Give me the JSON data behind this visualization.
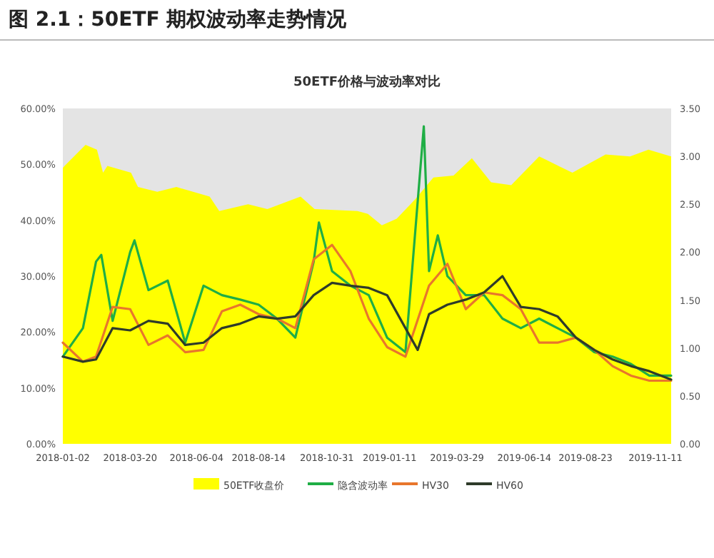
{
  "chart_data": {
    "type": "line",
    "title": "图 2.1：50ETF 期权波动率走势情况",
    "subtitle": "50ETF价格与波动率对比",
    "legend": "bottom",
    "line_style": "solid",
    "xlim": [
      "2018-01-02",
      "2019-11-29"
    ],
    "xticks": [
      "2018-01-02",
      "2018-03-20",
      "2018-06-04",
      "2018-08-14",
      "2018-10-31",
      "2019-01-11",
      "2019-03-29",
      "2019-06-14",
      "2019-08-23",
      "2019-11-11"
    ],
    "ylim": [
      0,
      60
    ],
    "yticks": [
      {
        "value": 0,
        "label": "0.00%"
      },
      {
        "value": 10,
        "label": "10.00%"
      },
      {
        "value": 20,
        "label": "20.00%"
      },
      {
        "value": 30,
        "label": "30.00%"
      },
      {
        "value": 40,
        "label": "40.00%"
      },
      {
        "value": 50,
        "label": "50.00%"
      },
      {
        "value": 60,
        "label": "60.00%"
      }
    ],
    "y2lim": [
      0,
      3.5
    ],
    "y2ticks": [
      {
        "value": 0,
        "label": "0.00"
      },
      {
        "value": 0.5,
        "label": "0.50"
      },
      {
        "value": 1,
        "label": "1.00"
      },
      {
        "value": 1.5,
        "label": "1.50"
      },
      {
        "value": 2,
        "label": "2.00"
      },
      {
        "value": 2.5,
        "label": "2.50"
      },
      {
        "value": 3,
        "label": "3.00"
      },
      {
        "value": 3.5,
        "label": "3.50"
      }
    ],
    "series": [
      {
        "name": "50ETF收盘价",
        "type": "area",
        "axis": "y2",
        "color": "#ffff00",
        "x": [
          "2018-01-02",
          "2018-01-04",
          "2018-01-28",
          "2018-02-10",
          "2018-02-17",
          "2018-02-22",
          "2018-03-21",
          "2018-03-29",
          "2018-04-20",
          "2018-05-12",
          "2018-06-19",
          "2018-06-30",
          "2018-08-02",
          "2018-08-24",
          "2018-10-01",
          "2018-10-17",
          "2018-12-05",
          "2018-12-17",
          "2019-01-02",
          "2019-01-19",
          "2019-02-09",
          "2019-03-02",
          "2019-03-25",
          "2019-04-15",
          "2019-05-07",
          "2019-05-30",
          "2019-07-01",
          "2019-07-23",
          "2019-08-08",
          "2019-09-15",
          "2019-10-13",
          "2019-11-03",
          "2019-11-29"
        ],
        "values": [
          2.88,
          2.9,
          3.12,
          3.07,
          2.83,
          2.9,
          2.83,
          2.68,
          2.63,
          2.68,
          2.58,
          2.43,
          2.5,
          2.45,
          2.58,
          2.45,
          2.43,
          2.4,
          2.28,
          2.35,
          2.55,
          2.78,
          2.8,
          2.98,
          2.73,
          2.7,
          3.0,
          2.9,
          2.83,
          3.02,
          3.0,
          3.07,
          3.0
        ]
      },
      {
        "name": "隐含波动率",
        "color": "#1fae45",
        "x": [
          "2018-01-02",
          "2018-01-25",
          "2018-02-09",
          "2018-02-15",
          "2018-02-28",
          "2018-03-20",
          "2018-03-25",
          "2018-04-10",
          "2018-05-02",
          "2018-05-22",
          "2018-06-12",
          "2018-07-03",
          "2018-07-24",
          "2018-08-14",
          "2018-09-04",
          "2018-09-25",
          "2018-10-16",
          "2018-10-22",
          "2018-11-06",
          "2018-11-27",
          "2018-12-18",
          "2019-01-08",
          "2019-01-29",
          "2019-02-19",
          "2019-02-25",
          "2019-03-07",
          "2019-03-18",
          "2019-04-08",
          "2019-04-29",
          "2019-05-20",
          "2019-06-10",
          "2019-07-01",
          "2019-07-22",
          "2019-08-12",
          "2019-09-02",
          "2019-09-23",
          "2019-10-14",
          "2019-11-04",
          "2019-11-29"
        ],
        "values": [
          15.6,
          20.7,
          32.6,
          33.8,
          22.0,
          34.3,
          36.4,
          27.5,
          29.2,
          18.1,
          28.3,
          26.6,
          25.8,
          24.9,
          22.4,
          19.0,
          32.6,
          39.6,
          30.9,
          28.3,
          26.6,
          19.0,
          16.4,
          56.8,
          30.9,
          37.3,
          30.0,
          26.6,
          26.6,
          22.4,
          20.7,
          22.4,
          20.7,
          19.0,
          16.4,
          15.6,
          14.3,
          12.2,
          12.2
        ]
      },
      {
        "name": "HV30",
        "color": "#e8762c",
        "x": [
          "2018-01-02",
          "2018-01-25",
          "2018-02-09",
          "2018-02-28",
          "2018-03-20",
          "2018-04-10",
          "2018-05-02",
          "2018-05-22",
          "2018-06-12",
          "2018-07-03",
          "2018-07-24",
          "2018-08-14",
          "2018-09-04",
          "2018-09-25",
          "2018-10-16",
          "2018-11-06",
          "2018-11-27",
          "2018-12-18",
          "2019-01-08",
          "2019-01-29",
          "2019-02-25",
          "2019-03-18",
          "2019-04-08",
          "2019-04-29",
          "2019-05-20",
          "2019-06-10",
          "2019-07-01",
          "2019-07-22",
          "2019-08-12",
          "2019-09-02",
          "2019-09-23",
          "2019-10-14",
          "2019-11-04",
          "2019-11-29"
        ],
        "values": [
          18.1,
          14.7,
          15.6,
          24.5,
          24.1,
          17.7,
          19.4,
          16.4,
          16.8,
          23.7,
          24.9,
          23.2,
          22.4,
          20.7,
          33.0,
          35.6,
          30.9,
          22.4,
          17.3,
          15.6,
          28.3,
          32.2,
          24.1,
          27.1,
          26.6,
          24.1,
          18.1,
          18.1,
          19.0,
          16.8,
          13.9,
          12.2,
          11.3,
          11.3
        ]
      },
      {
        "name": "HV60",
        "color": "#2e3b2a",
        "x": [
          "2018-01-02",
          "2018-01-25",
          "2018-02-09",
          "2018-02-28",
          "2018-03-20",
          "2018-04-10",
          "2018-05-02",
          "2018-05-22",
          "2018-06-12",
          "2018-07-03",
          "2018-07-24",
          "2018-08-14",
          "2018-09-04",
          "2018-09-25",
          "2018-10-16",
          "2018-11-06",
          "2018-11-27",
          "2018-12-18",
          "2019-01-08",
          "2019-01-29",
          "2019-02-12",
          "2019-02-25",
          "2019-03-18",
          "2019-04-08",
          "2019-04-29",
          "2019-05-20",
          "2019-06-10",
          "2019-07-01",
          "2019-07-22",
          "2019-08-12",
          "2019-09-02",
          "2019-09-23",
          "2019-10-14",
          "2019-11-04",
          "2019-11-29"
        ],
        "values": [
          15.6,
          14.7,
          15.1,
          20.7,
          20.3,
          22.0,
          21.5,
          17.7,
          18.1,
          20.7,
          21.5,
          22.8,
          22.4,
          22.8,
          26.6,
          28.8,
          28.3,
          27.9,
          26.6,
          20.7,
          16.8,
          23.2,
          24.9,
          25.8,
          27.1,
          30.0,
          24.5,
          24.1,
          22.8,
          19.0,
          16.8,
          15.1,
          13.9,
          13.0,
          11.5
        ]
      }
    ]
  }
}
